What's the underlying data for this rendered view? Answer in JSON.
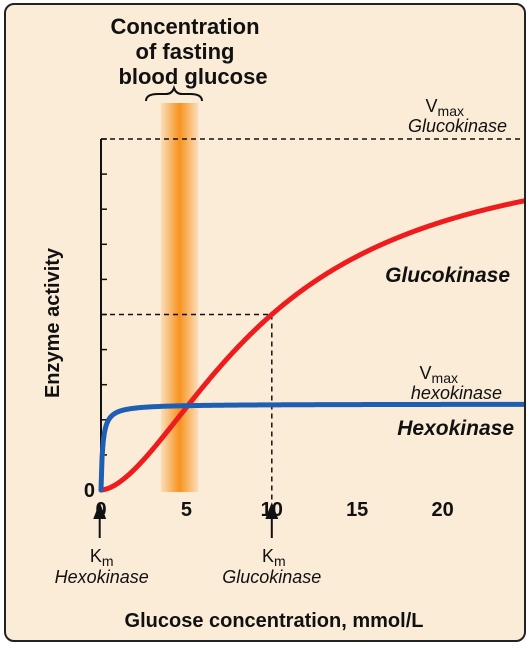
{
  "chart_data": {
    "type": "line",
    "band_title": [
      "Concentration",
      "of fasting",
      "blood glucose"
    ],
    "xlabel": "Glucose concentration, mmol/L",
    "ylabel": "Enzyme activity",
    "x_ticks": [
      0,
      5,
      10,
      15,
      20
    ],
    "y_tick": "0",
    "xlim": [
      0,
      25
    ],
    "ylim": [
      0,
      1
    ],
    "fasting_band": [
      3.5,
      5.7
    ],
    "colors": {
      "glucokinase": "#ee1c1c",
      "hexokinase": "#1f5fb3",
      "band": "#f7931e",
      "background": "#fbecd8"
    },
    "series": [
      {
        "name": "Glucokinase",
        "vmax": 1.0,
        "km": 10,
        "hill": 1.7
      },
      {
        "name": "Hexokinase",
        "vmax": 0.245,
        "km": 0.1,
        "hill": 1.0
      }
    ],
    "annotations": {
      "vmax_gk": {
        "line1": "V",
        "sub": "max",
        "line2": "Glucokinase"
      },
      "vmax_hk": {
        "line1": "V",
        "sub": "max",
        "line2": "hexokinase"
      },
      "km_hk": {
        "line1": "K",
        "sub": "m",
        "line2": "Hexokinase"
      },
      "km_gk": {
        "line1": "K",
        "sub": "m",
        "line2": "Glucokinase"
      }
    }
  }
}
